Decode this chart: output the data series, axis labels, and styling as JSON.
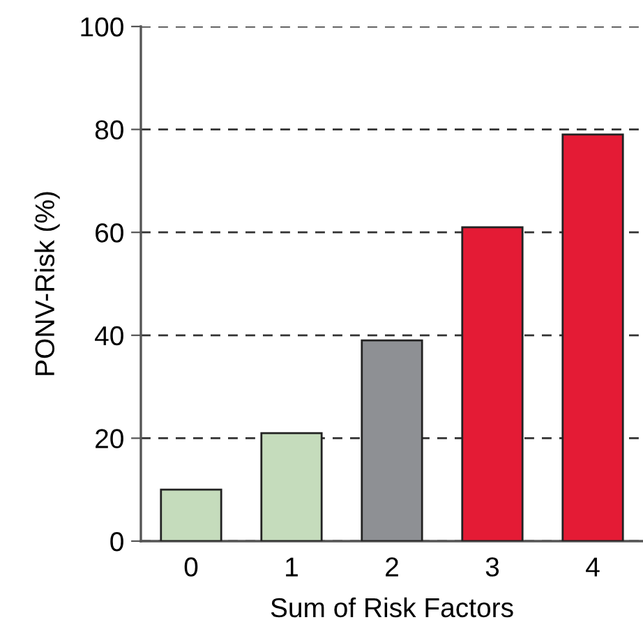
{
  "chart_data": {
    "type": "bar",
    "xlabel": "Sum of Risk Factors",
    "ylabel": "PONV-Risk (%)",
    "categories": [
      "0",
      "1",
      "2",
      "3",
      "4"
    ],
    "values": [
      10,
      21,
      39,
      61,
      79
    ],
    "colors": [
      "#c5dcbc",
      "#c5dcbc",
      "#8e9094",
      "#e41b35",
      "#e41b35"
    ],
    "ylim": [
      0,
      100
    ],
    "yticks": [
      0,
      20,
      40,
      60,
      80,
      100
    ],
    "grid": "y",
    "legend": false
  }
}
